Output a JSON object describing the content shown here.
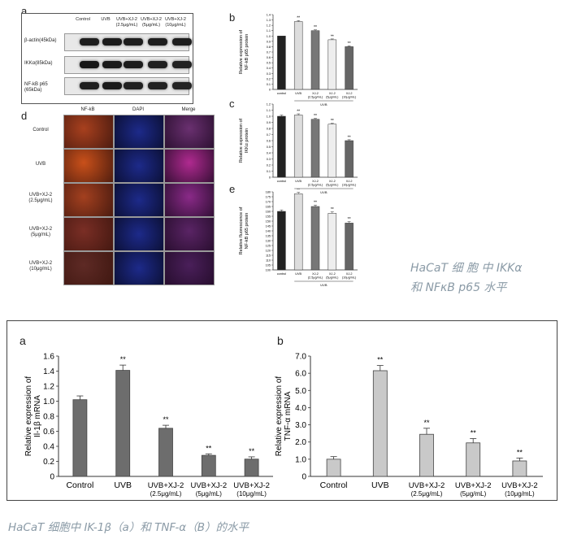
{
  "colors": {
    "dark_bar": "#222222",
    "light_bar": "#dddddd",
    "mid_bar": "#777777",
    "gray_bar": "#6d6d6d",
    "light_gray_bar": "#c9c9c9",
    "caption": "#8a9aa6"
  },
  "top_figure": {
    "panel_a": {
      "letter": "a",
      "columns": [
        "Control",
        "UVB",
        "UVB+XJ-2\n(2.5μg/mL)",
        "UVB+XJ-2\n(5μg/mL)",
        "UVB+XJ-2\n(10μg/mL)"
      ],
      "rows": [
        "β-actin(45kDa)",
        "IKKα(85kDa)",
        "NF-kB p65\n(65kDa)"
      ]
    },
    "panel_d": {
      "letter": "d",
      "columns": [
        "NF-kB",
        "DAPI",
        "Merge"
      ],
      "rows": [
        "Control",
        "UVB",
        "UVB+XJ-2\n(2.5μg/mL)",
        "UVB+XJ-2\n(5μg/mL)",
        "UVB+XJ-2\n(10μg/mL)"
      ]
    },
    "side_caption": [
      "HaCaT 细 胞 中 IKKα",
      "和 NFκB p65 水平"
    ]
  },
  "chart_data": [
    {
      "id": "b",
      "letter": "b",
      "type": "bar",
      "categories": [
        "control",
        "UVB",
        "XJ-2\n(2.5μg/mL)",
        "XJ-2\n(5μg/mL)",
        "XJ-2\n(10μg/mL)"
      ],
      "values": [
        1.0,
        1.27,
        1.1,
        0.93,
        0.8
      ],
      "errors": [
        0,
        0.02,
        0.015,
        0.015,
        0.015
      ],
      "stars": [
        "",
        "**",
        "**",
        "**",
        "**"
      ],
      "bar_colors": [
        "#222222",
        "#dddddd",
        "#777777",
        "#eeeeee",
        "#666666"
      ],
      "ylabel": "Relative expression of\nNF-kB p65 protein",
      "ylim": [
        0,
        1.4
      ],
      "yticks": [
        "0",
        "0.1",
        "0.2",
        "0.3",
        "0.4",
        "0.5",
        "0.6",
        "0.7",
        "0.8",
        "0.9",
        "1.0",
        "1.1",
        "1.2",
        "1.3",
        "1.4"
      ],
      "group_label": "UVB"
    },
    {
      "id": "c",
      "letter": "c",
      "type": "bar",
      "categories": [
        "control",
        "UVB",
        "XJ-2\n(2.5μg/mL)",
        "XJ-2\n(5μg/mL)",
        "XJ-2\n(10μg/mL)"
      ],
      "values": [
        1.0,
        1.02,
        0.95,
        0.87,
        0.6
      ],
      "errors": [
        0.02,
        0.02,
        0.015,
        0.015,
        0.015
      ],
      "stars": [
        "",
        "**",
        "**",
        "**",
        "**"
      ],
      "bar_colors": [
        "#222222",
        "#dddddd",
        "#777777",
        "#eeeeee",
        "#666666"
      ],
      "ylabel": "Relative expression of\nIKKα protein",
      "ylim": [
        0,
        1.2
      ],
      "yticks": [
        "0",
        "0.1",
        "0.2",
        "0.3",
        "0.4",
        "0.5",
        "0.6",
        "0.7",
        "0.8",
        "0.9",
        "1.0",
        "1.1",
        "1.2"
      ],
      "group_label": "UVB"
    },
    {
      "id": "e",
      "letter": "e",
      "type": "bar",
      "categories": [
        "control",
        "UVB",
        "XJ-2\n(2.5μg/mL)",
        "XJ-2\n(5μg/mL)",
        "XJ-2\n(10μg/mL)"
      ],
      "values": [
        160,
        178,
        165,
        158,
        148
      ],
      "errors": [
        1.5,
        1.5,
        1.5,
        1.5,
        1.5
      ],
      "stars": [
        "",
        "**",
        "**",
        "**",
        "**"
      ],
      "bar_colors": [
        "#222222",
        "#dddddd",
        "#777777",
        "#eeeeee",
        "#666666"
      ],
      "ylabel": "Relative fluorescence of\nNF-kB p65 protein",
      "ylim": [
        100,
        180
      ],
      "yticks": [
        "100",
        "105",
        "110",
        "115",
        "120",
        "125",
        "130",
        "135",
        "140",
        "145",
        "150",
        "155",
        "160",
        "165",
        "170",
        "175",
        "180"
      ],
      "group_label": "UVB"
    },
    {
      "id": "bottom_a",
      "letter": "a",
      "type": "bar",
      "categories": [
        "Control",
        "UVB",
        "UVB+XJ-2\n(2.5μg/mL)",
        "UVB+XJ-2\n(5μg/mL)",
        "UVB+XJ-2\n(10μg/mL)"
      ],
      "values": [
        1.02,
        1.41,
        0.64,
        0.28,
        0.23
      ],
      "errors": [
        0.05,
        0.07,
        0.04,
        0.02,
        0.03
      ],
      "stars": [
        "",
        "**",
        "**",
        "**",
        "**"
      ],
      "bar_colors": [
        "#6d6d6d",
        "#6d6d6d",
        "#6d6d6d",
        "#6d6d6d",
        "#6d6d6d"
      ],
      "ylabel": "Relative expression of\nIl-1β mRNA",
      "ylim": [
        0,
        1.6
      ],
      "yticks": [
        "0",
        "0.2",
        "0.4",
        "0.6",
        "0.8",
        "1.0",
        "1.2",
        "1.4",
        "1.6"
      ]
    },
    {
      "id": "bottom_b",
      "letter": "b",
      "type": "bar",
      "categories": [
        "Control",
        "UVB",
        "UVB+XJ-2\n(2.5μg/mL)",
        "UVB+XJ-2\n(5μg/mL)",
        "UVB+XJ-2\n(10μg/mL)"
      ],
      "values": [
        1.0,
        6.15,
        2.45,
        1.95,
        0.9
      ],
      "errors": [
        0.15,
        0.3,
        0.35,
        0.25,
        0.17
      ],
      "stars": [
        "",
        "**",
        "**",
        "**",
        "**"
      ],
      "bar_colors": [
        "#c9c9c9",
        "#c9c9c9",
        "#c9c9c9",
        "#c9c9c9",
        "#c9c9c9"
      ],
      "ylabel": "Relative expression of\nTNF-α mRNA",
      "ylim": [
        0,
        7.0
      ],
      "yticks": [
        "0",
        "1.0",
        "2.0",
        "3.0",
        "4.0",
        "5.0",
        "6.0",
        "7.0"
      ]
    }
  ],
  "bottom_caption": "HaCaT 细胞中 IK-1β（a）和 TNF-α（B）的水平"
}
